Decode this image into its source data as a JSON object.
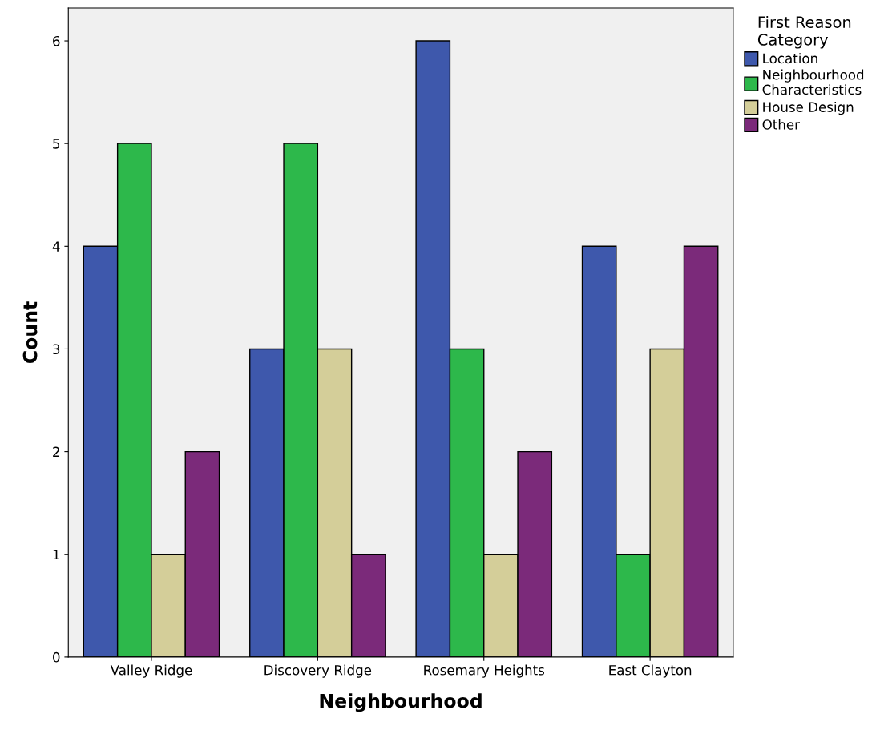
{
  "chart_data": {
    "type": "bar",
    "xlabel": "Neighbourhood",
    "ylabel": "Count",
    "legend_title": "First Reason\nCategory",
    "categories": [
      "Valley Ridge",
      "Discovery Ridge",
      "Rosemary Heights",
      "East Clayton"
    ],
    "series": [
      {
        "name": "Location",
        "color": "#3e58ac",
        "values": [
          4,
          3,
          6,
          4
        ]
      },
      {
        "name": "Neighbourhood\nCharacteristics",
        "color": "#2db84b",
        "values": [
          5,
          5,
          3,
          1
        ]
      },
      {
        "name": "House Design",
        "color": "#d4ce99",
        "values": [
          1,
          3,
          1,
          3
        ]
      },
      {
        "name": "Other",
        "color": "#7b2a7a",
        "values": [
          2,
          1,
          2,
          4
        ]
      }
    ],
    "ylim": [
      0,
      6.32
    ],
    "yticks": [
      0,
      1,
      2,
      3,
      4,
      5,
      6
    ],
    "grid": false,
    "legend": "top right"
  }
}
